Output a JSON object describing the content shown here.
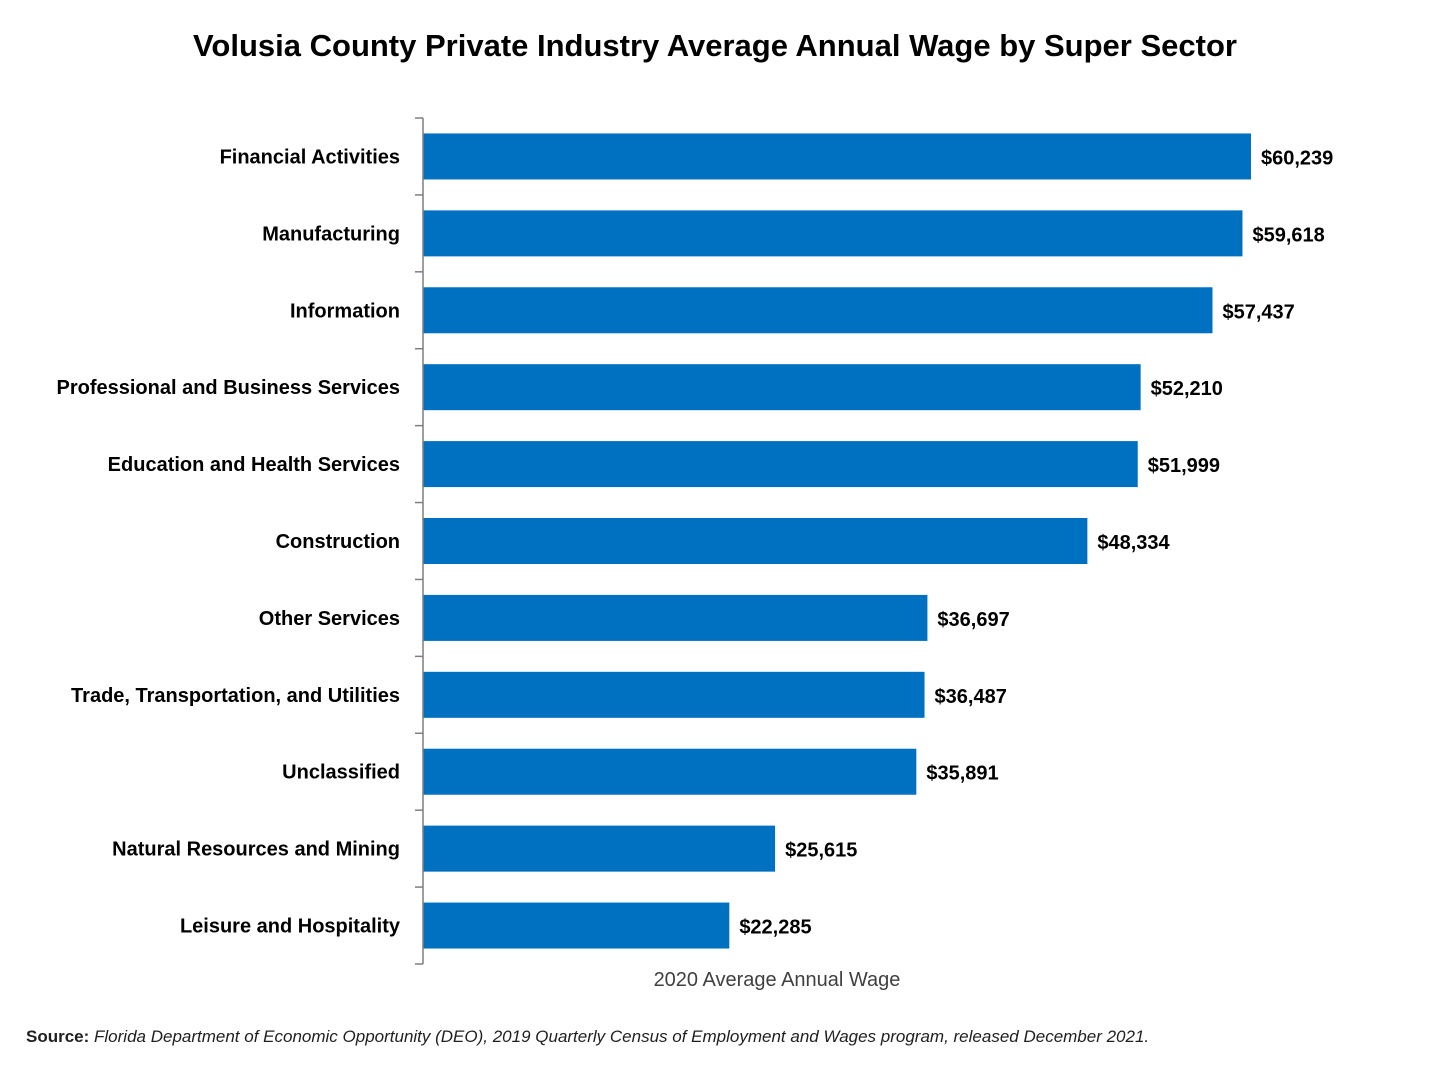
{
  "chart_data": {
    "type": "bar",
    "orientation": "horizontal",
    "title": "Volusia County Private Industry Average Annual Wage by Super Sector",
    "xlabel": "2020 Average Annual Wage",
    "ylabel": "",
    "categories": [
      "Financial Activities",
      "Manufacturing",
      "Information",
      "Professional and Business Services",
      "Education and Health Services",
      "Construction",
      "Other Services",
      "Trade, Transportation, and Utilities",
      "Unclassified",
      "Natural Resources and Mining",
      "Leisure and Hospitality"
    ],
    "values": [
      60239,
      59618,
      57437,
      52210,
      51999,
      48334,
      36697,
      36487,
      35891,
      25615,
      22285
    ],
    "data_labels": [
      "$60,239",
      "$59,618",
      "$57,437",
      "$52,210",
      "$51,999",
      "$48,334",
      "$36,697",
      "$36,487",
      "$35,891",
      "$25,615",
      "$22,285"
    ],
    "xlim": [
      0,
      60239
    ],
    "bar_color": "#0070C0",
    "grid": false,
    "legend": "none"
  },
  "source": {
    "label": "Source:",
    "text": " Florida Department of Economic Opportunity (DEO), 2019 Quarterly Census of Employment and Wages program, released December 2021."
  }
}
